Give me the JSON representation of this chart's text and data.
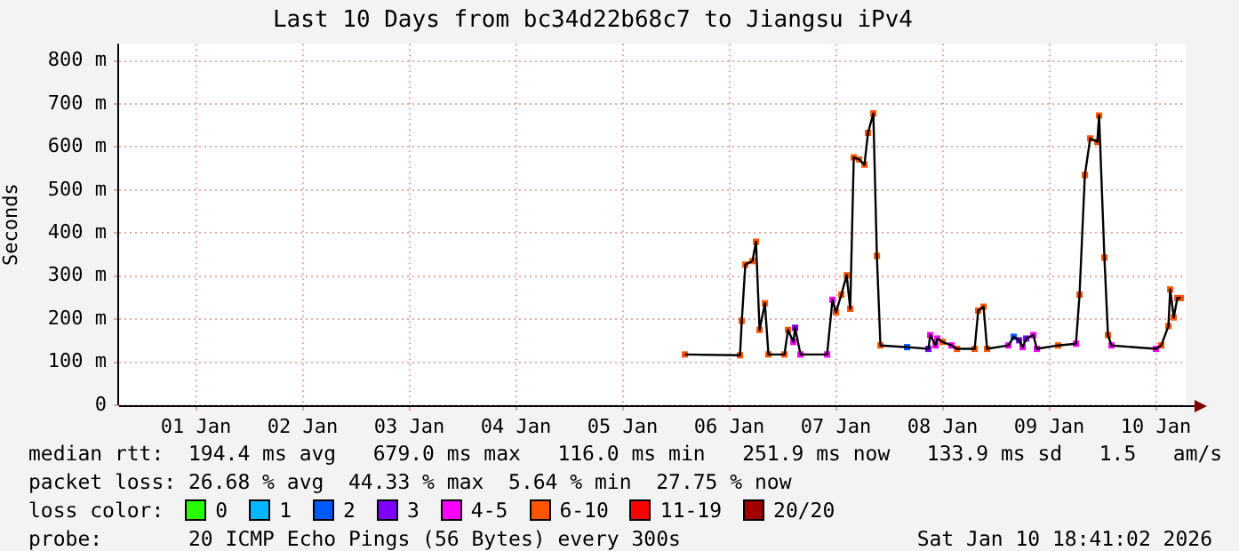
{
  "chart_data": {
    "type": "line",
    "title": "Last 10 Days from bc34d22b68c7 to Jiangsu iPv4",
    "ylabel": "Seconds",
    "xlim": [
      "2025-12-31T18:41",
      "2026-01-10T18:41"
    ],
    "xticks": [
      {
        "value": "2026-01-01T12:00",
        "label": "01 Jan"
      },
      {
        "value": "2026-01-02T12:00",
        "label": "02 Jan"
      },
      {
        "value": "2026-01-03T12:00",
        "label": "03 Jan"
      },
      {
        "value": "2026-01-04T12:00",
        "label": "04 Jan"
      },
      {
        "value": "2026-01-05T12:00",
        "label": "05 Jan"
      },
      {
        "value": "2026-01-06T12:00",
        "label": "06 Jan"
      },
      {
        "value": "2026-01-07T12:00",
        "label": "07 Jan"
      },
      {
        "value": "2026-01-08T12:00",
        "label": "08 Jan"
      },
      {
        "value": "2026-01-09T12:00",
        "label": "09 Jan"
      },
      {
        "value": "2026-01-10T12:00",
        "label": "10 Jan"
      }
    ],
    "ylim": [
      0,
      840
    ],
    "yticks": [
      0,
      {
        "value": 100,
        "label": "100 m"
      },
      {
        "value": 200,
        "label": "200 m"
      },
      {
        "value": 300,
        "label": "300 m"
      },
      {
        "value": 400,
        "label": "400 m"
      },
      {
        "value": 500,
        "label": "500 m"
      },
      {
        "value": 600,
        "label": "600 m"
      },
      {
        "value": 700,
        "label": "700 m"
      },
      {
        "value": 800,
        "label": "800 m"
      }
    ],
    "grid": true,
    "legend": "bottom",
    "legend_title": "loss color:",
    "series": [
      {
        "color": "#000000",
        "marker": "none",
        "x": [
          "2026-01-06T02:00",
          "2026-01-06T14:24",
          "2026-01-06T14:48",
          "2026-01-06T15:36",
          "2026-01-06T17:12",
          "2026-01-06T18:00",
          "2026-01-06T18:48",
          "2026-01-06T20:00",
          "2026-01-06T20:48",
          "2026-01-07T00:24",
          "2026-01-07T01:12",
          "2026-01-07T02:24",
          "2026-01-07T02:48",
          "2026-01-07T04:00",
          "2026-01-07T10:00",
          "2026-01-07T11:12",
          "2026-01-07T12:00",
          "2026-01-07T13:12",
          "2026-01-07T14:24",
          "2026-01-07T15:12",
          "2026-01-07T16:00",
          "2026-01-07T17:12",
          "2026-01-07T18:24",
          "2026-01-07T19:12",
          "2026-01-07T20:24",
          "2026-01-07T21:12",
          "2026-01-07T22:00",
          "2026-01-08T04:00",
          "2026-01-08T08:48",
          "2026-01-08T09:12",
          "2026-01-08T10:24",
          "2026-01-08T10:48",
          "2026-01-08T12:00",
          "2026-01-08T14:00",
          "2026-01-08T15:12",
          "2026-01-08T19:12",
          "2026-01-08T20:00",
          "2026-01-08T21:12",
          "2026-01-08T22:00",
          "2026-01-09T02:48",
          "2026-01-09T04:00",
          "2026-01-09T05:12",
          "2026-01-09T06:00",
          "2026-01-09T06:48",
          "2026-01-09T08:24",
          "2026-01-09T09:12",
          "2026-01-09T14:00",
          "2026-01-09T18:00",
          "2026-01-09T18:48",
          "2026-01-09T20:00",
          "2026-01-09T21:12",
          "2026-01-09T22:48",
          "2026-01-09T23:12",
          "2026-01-10T00:24",
          "2026-01-10T01:12",
          "2026-01-10T02:00",
          "2026-01-10T12:00",
          "2026-01-10T13:12",
          "2026-01-10T14:48",
          "2026-01-10T15:12",
          "2026-01-10T16:00",
          "2026-01-10T16:48",
          "2026-01-10T17:36"
        ],
        "values": [
          118,
          116,
          196,
          327,
          335,
          380,
          175,
          237,
          118,
          118,
          175,
          147,
          180,
          118,
          118,
          245,
          216,
          257,
          302,
          224,
          576,
          571,
          559,
          633,
          678,
          347,
          139,
          135,
          131,
          163,
          139,
          155,
          147,
          139,
          131,
          131,
          220,
          229,
          131,
          139,
          159,
          151,
          135,
          155,
          163,
          131,
          139,
          143,
          257,
          535,
          620,
          612,
          673,
          343,
          163,
          139,
          131,
          139,
          184,
          269,
          204,
          249,
          249
        ]
      },
      {
        "type": "scatter",
        "name": "0",
        "color": "#26ff00",
        "marker": "square"
      },
      {
        "type": "scatter",
        "name": "1",
        "color": "#00b8ff",
        "marker": "square"
      },
      {
        "type": "scatter",
        "name": "2",
        "color": "#0059ff",
        "marker": "square",
        "x": [
          "2026-01-08T04:00",
          "2026-01-09T04:00"
        ],
        "values": [
          135,
          159
        ]
      },
      {
        "type": "scatter",
        "name": "3",
        "color": "#7e00ff",
        "marker": "square",
        "x": [
          "2026-01-07T02:48",
          "2026-01-08T08:48",
          "2026-01-09T05:12",
          "2026-01-09T06:48"
        ],
        "values": [
          180,
          131,
          151,
          155
        ]
      },
      {
        "type": "scatter",
        "name": "4-5",
        "color": "#ff00ff",
        "marker": "square",
        "x": [
          "2026-01-07T02:24",
          "2026-01-07T04:00",
          "2026-01-07T10:00",
          "2026-01-07T11:12",
          "2026-01-08T09:12",
          "2026-01-08T10:24",
          "2026-01-08T10:48",
          "2026-01-08T14:00",
          "2026-01-09T02:48",
          "2026-01-09T06:00",
          "2026-01-09T08:24",
          "2026-01-09T09:12",
          "2026-01-09T18:00",
          "2026-01-10T02:00",
          "2026-01-10T12:00"
        ],
        "values": [
          147,
          118,
          118,
          245,
          163,
          139,
          155,
          139,
          139,
          135,
          163,
          131,
          143,
          139,
          131
        ]
      },
      {
        "type": "scatter",
        "name": "6-10",
        "color": "#ff5500",
        "marker": "square",
        "x": [
          "2026-01-06T02:00",
          "2026-01-06T14:24",
          "2026-01-06T14:48",
          "2026-01-06T15:36",
          "2026-01-06T17:12",
          "2026-01-06T18:00",
          "2026-01-06T18:48",
          "2026-01-06T20:00",
          "2026-01-06T20:48",
          "2026-01-07T00:24",
          "2026-01-07T01:12",
          "2026-01-07T12:00",
          "2026-01-07T13:12",
          "2026-01-07T14:24",
          "2026-01-07T15:12",
          "2026-01-07T16:00",
          "2026-01-07T17:12",
          "2026-01-07T18:24",
          "2026-01-07T19:12",
          "2026-01-07T20:24",
          "2026-01-07T21:12",
          "2026-01-07T22:00",
          "2026-01-08T12:00",
          "2026-01-08T15:12",
          "2026-01-08T19:12",
          "2026-01-08T20:00",
          "2026-01-08T21:12",
          "2026-01-08T22:00",
          "2026-01-09T14:00",
          "2026-01-09T18:48",
          "2026-01-09T20:00",
          "2026-01-09T21:12",
          "2026-01-09T22:48",
          "2026-01-09T23:12",
          "2026-01-10T00:24",
          "2026-01-10T01:12",
          "2026-01-10T13:12",
          "2026-01-10T14:48",
          "2026-01-10T15:12",
          "2026-01-10T16:00",
          "2026-01-10T16:48",
          "2026-01-10T17:36"
        ],
        "values": [
          118,
          116,
          196,
          327,
          335,
          380,
          175,
          237,
          118,
          118,
          175,
          216,
          257,
          302,
          224,
          576,
          571,
          559,
          633,
          678,
          347,
          139,
          147,
          131,
          131,
          220,
          229,
          131,
          139,
          257,
          535,
          620,
          612,
          673,
          343,
          163,
          139,
          184,
          269,
          204,
          249,
          249
        ]
      },
      {
        "type": "scatter",
        "name": "11-19",
        "color": "#ff0000",
        "marker": "square"
      },
      {
        "type": "scatter",
        "name": "20/20",
        "color": "#a10000",
        "marker": "square"
      }
    ],
    "annotations": [
      "median rtt:  194.4 ms avg   679.0 ms max   116.0 ms min   251.9 ms now   133.9 ms sd   1.5   am/s",
      "packet loss: 26.68 % avg  44.33 % max  5.64 % min  27.75 % now",
      "probe:       20 ICMP Echo Pings (56 Bytes) every 300s",
      "Sat Jan 10 18:41:02 2026"
    ]
  }
}
